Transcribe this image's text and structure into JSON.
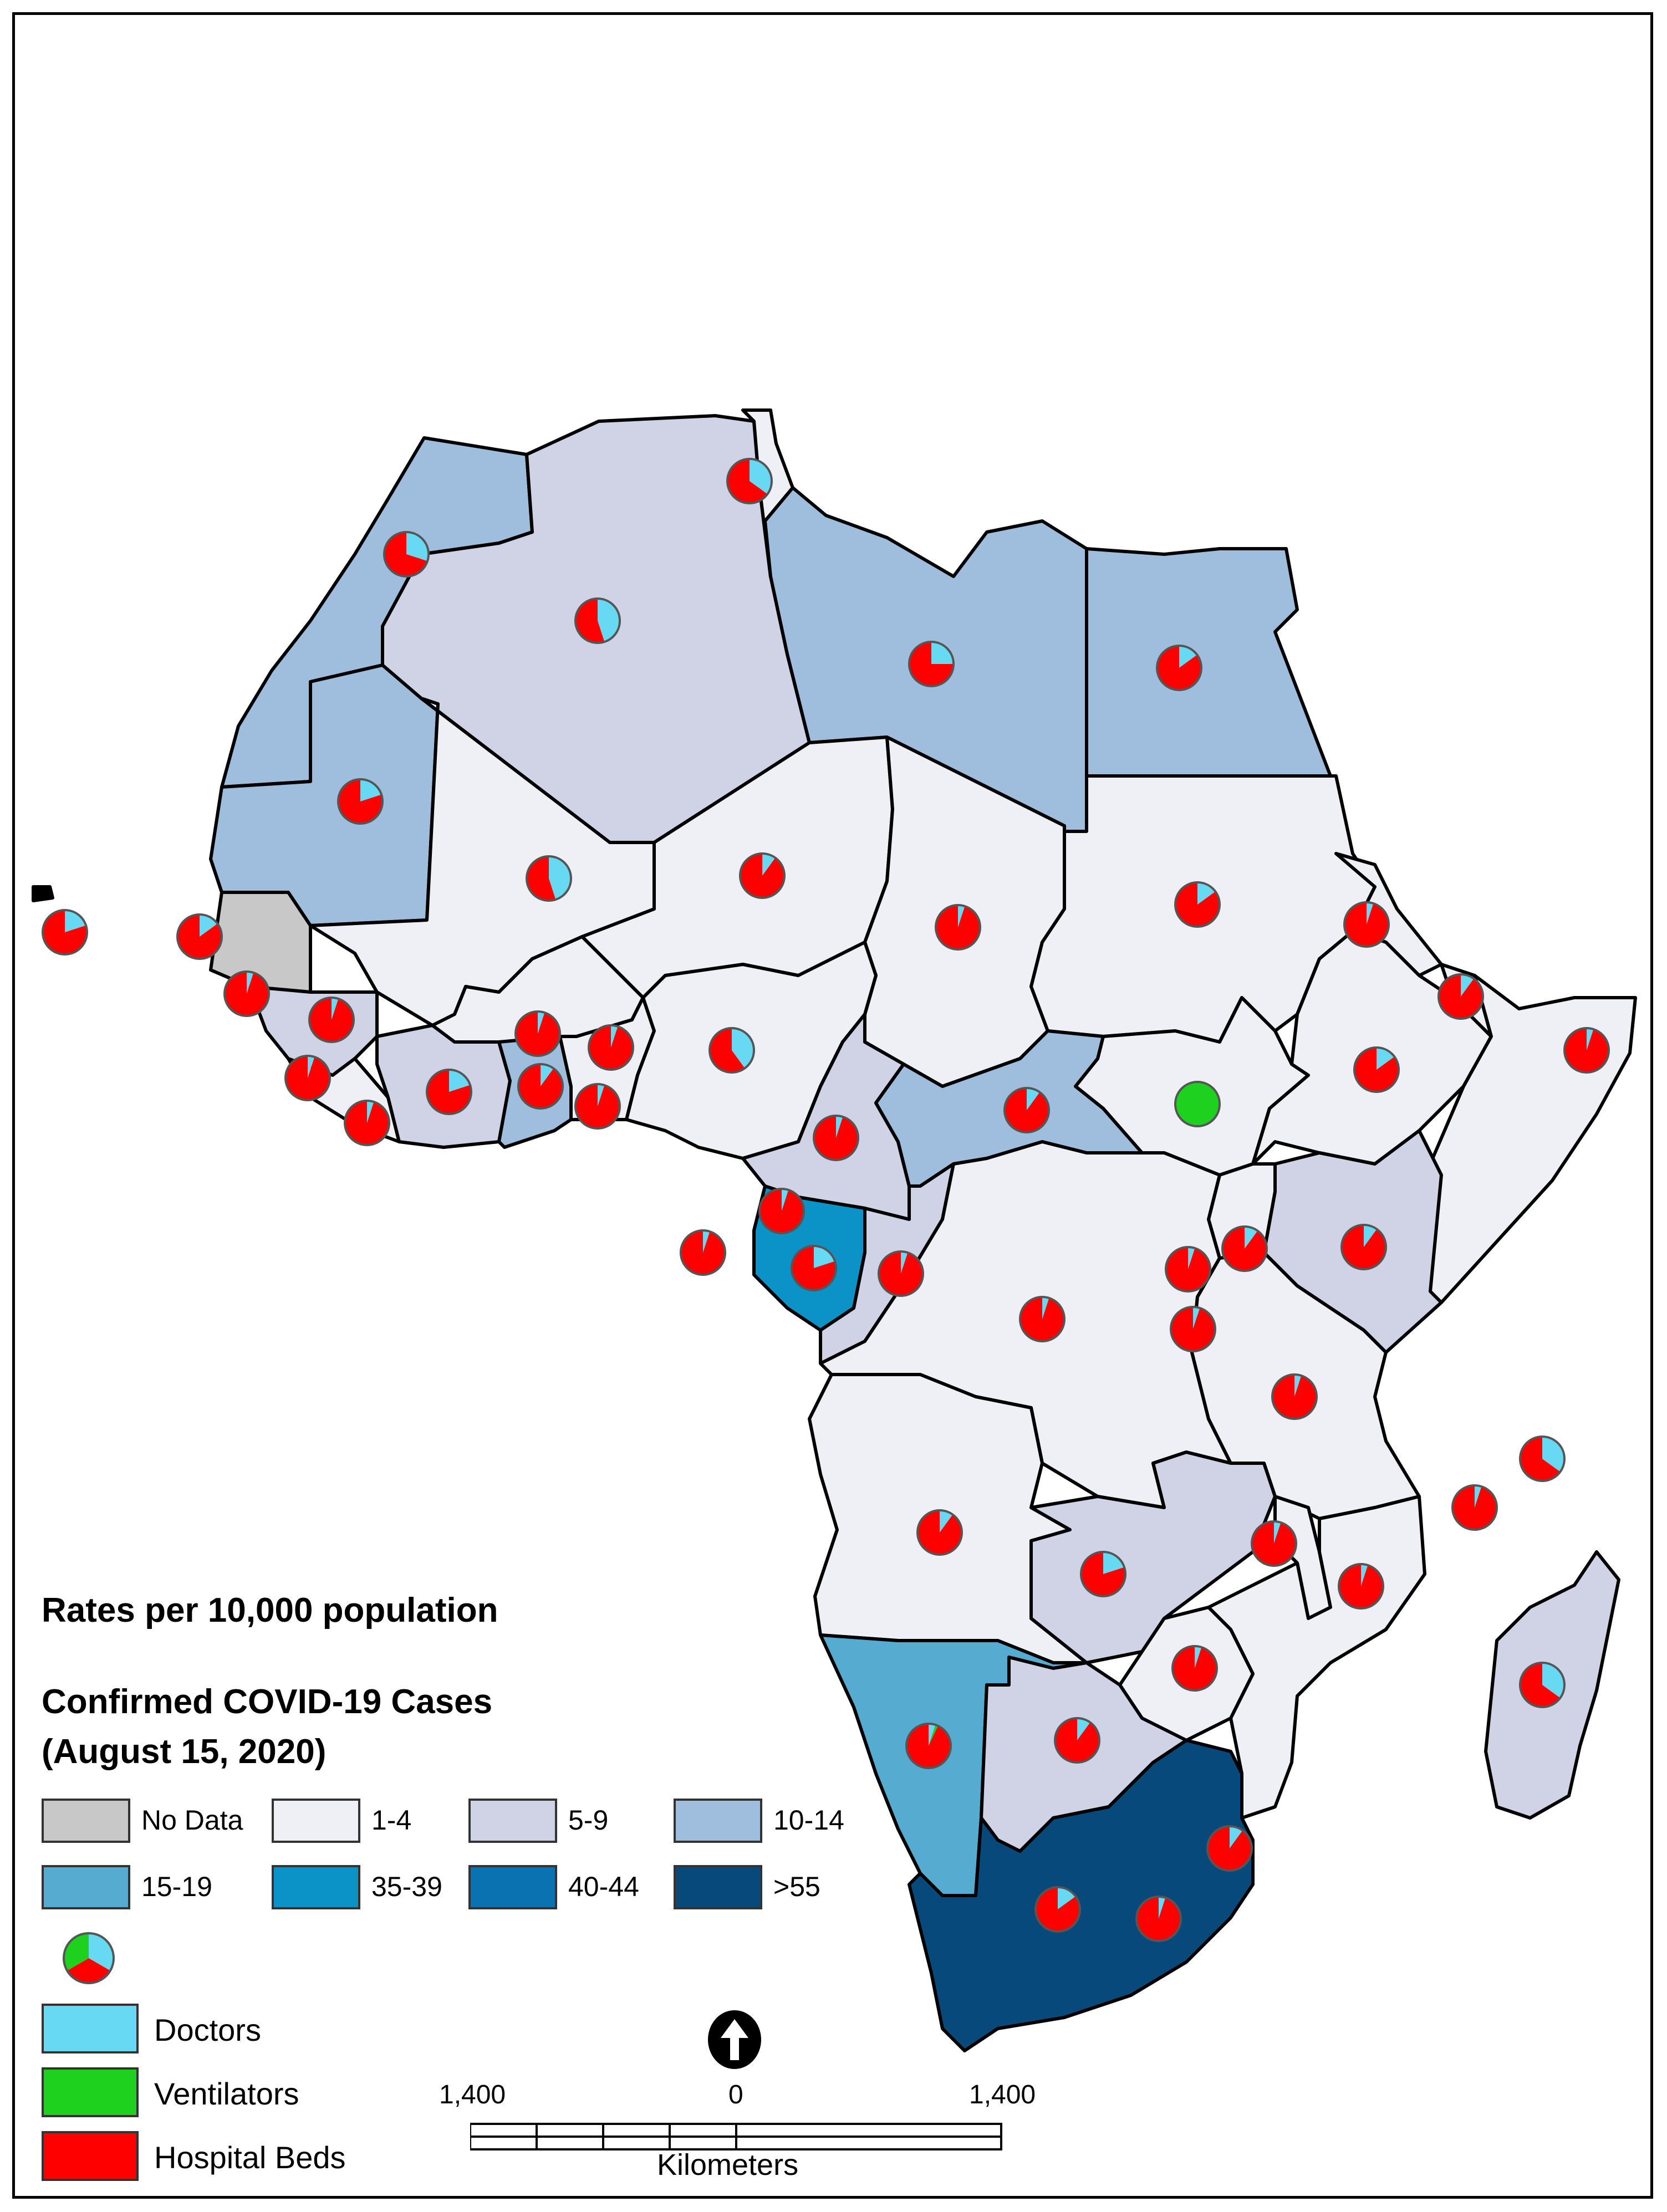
{
  "legend": {
    "rates_title": "Rates per 10,000 population",
    "cases_title": "Confirmed COVID-19 Cases",
    "cases_date": "(August 15, 2020)",
    "classes": [
      {
        "label": "No Data",
        "color": "#c8c8c8"
      },
      {
        "label": "1-4",
        "color": "#efeff6"
      },
      {
        "label": "5-9",
        "color": "#d0d2e6"
      },
      {
        "label": "10-14",
        "color": "#9fbddc"
      },
      {
        "label": "15-19",
        "color": "#55acd0"
      },
      {
        "label": "35-39",
        "color": "#0b93c8"
      },
      {
        "label": "40-44",
        "color": "#0a72b0"
      },
      {
        "label": ">55",
        "color": "#07497a"
      }
    ],
    "resources": [
      {
        "label": "Doctors",
        "color": "#67d9f2"
      },
      {
        "label": "Ventilators",
        "color": "#1ed11e"
      },
      {
        "label": "Hospital Beds",
        "color": "#ff0000"
      }
    ]
  },
  "scale_bar": {
    "left_label": "1,400",
    "center_label": "0",
    "right_label": "1,400",
    "unit": "Kilometers"
  },
  "north_arrow": "north-arrow-icon",
  "pie_charts": [
    {
      "country": "Morocco",
      "doctors": 0.3,
      "hospital_beds": 0.7
    },
    {
      "country": "Algeria",
      "doctors": 0.45,
      "hospital_beds": 0.55
    },
    {
      "country": "Tunisia",
      "doctors": 0.35,
      "hospital_beds": 0.65
    },
    {
      "country": "Libya",
      "doctors": 0.25,
      "hospital_beds": 0.75
    },
    {
      "country": "Egypt",
      "doctors": 0.15,
      "hospital_beds": 0.85
    },
    {
      "country": "Mauritania",
      "doctors": 0.2,
      "hospital_beds": 0.8
    },
    {
      "country": "Mali",
      "doctors": 0.45,
      "hospital_beds": 0.55
    },
    {
      "country": "Niger",
      "doctors": 0.1,
      "hospital_beds": 0.9
    },
    {
      "country": "Chad",
      "doctors": 0.05,
      "hospital_beds": 0.95
    },
    {
      "country": "Sudan",
      "doctors": 0.15,
      "hospital_beds": 0.85
    },
    {
      "country": "Cabo Verde",
      "doctors": 0.2,
      "hospital_beds": 0.8
    },
    {
      "country": "Senegal",
      "doctors": 0.15,
      "hospital_beds": 0.85
    },
    {
      "country": "Guinea-Bissau",
      "doctors": 0.05,
      "hospital_beds": 0.95
    },
    {
      "country": "Guinea",
      "doctors": 0.05,
      "hospital_beds": 0.95
    },
    {
      "country": "Sierra Leone",
      "doctors": 0.05,
      "hospital_beds": 0.95
    },
    {
      "country": "Liberia",
      "doctors": 0.05,
      "hospital_beds": 0.95
    },
    {
      "country": "Cote d'Ivoire",
      "doctors": 0.2,
      "hospital_beds": 0.8
    },
    {
      "country": "Burkina Faso",
      "doctors": 0.05,
      "hospital_beds": 0.95
    },
    {
      "country": "Ghana",
      "doctors": 0.1,
      "hospital_beds": 0.9
    },
    {
      "country": "Togo",
      "doctors": 0.05,
      "hospital_beds": 0.95
    },
    {
      "country": "Benin",
      "doctors": 0.05,
      "hospital_beds": 0.95
    },
    {
      "country": "Nigeria",
      "doctors": 0.4,
      "hospital_beds": 0.6
    },
    {
      "country": "Eritrea",
      "doctors": 0.05,
      "hospital_beds": 0.95
    },
    {
      "country": "Djibouti",
      "doctors": 0.1,
      "hospital_beds": 0.9
    },
    {
      "country": "Somalia",
      "doctors": 0.05,
      "hospital_beds": 0.95
    },
    {
      "country": "Ethiopia",
      "doctors": 0.15,
      "hospital_beds": 0.85
    },
    {
      "country": "South Sudan",
      "ventilators": 1.0
    },
    {
      "country": "Central African Republic",
      "doctors": 0.1,
      "hospital_beds": 0.9
    },
    {
      "country": "Cameroon",
      "doctors": 0.05,
      "hospital_beds": 0.95
    },
    {
      "country": "Equatorial Guinea",
      "doctors": 0.05,
      "hospital_beds": 0.95
    },
    {
      "country": "Sao Tome and Principe",
      "doctors": 0.05,
      "hospital_beds": 0.95
    },
    {
      "country": "Gabon",
      "doctors": 0.2,
      "hospital_beds": 0.8
    },
    {
      "country": "Congo",
      "doctors": 0.05,
      "hospital_beds": 0.95
    },
    {
      "country": "DR Congo",
      "doctors": 0.05,
      "hospital_beds": 0.95
    },
    {
      "country": "Uganda",
      "doctors": 0.1,
      "hospital_beds": 0.9
    },
    {
      "country": "Kenya",
      "doctors": 0.1,
      "hospital_beds": 0.9
    },
    {
      "country": "Rwanda",
      "doctors": 0.05,
      "hospital_beds": 0.95
    },
    {
      "country": "Burundi",
      "doctors": 0.05,
      "hospital_beds": 0.95
    },
    {
      "country": "Tanzania",
      "doctors": 0.05,
      "hospital_beds": 0.95
    },
    {
      "country": "Seychelles",
      "doctors": 0.35,
      "hospital_beds": 0.65
    },
    {
      "country": "Comoros",
      "doctors": 0.05,
      "hospital_beds": 0.95
    },
    {
      "country": "Angola",
      "doctors": 0.1,
      "hospital_beds": 0.9
    },
    {
      "country": "Zambia",
      "doctors": 0.2,
      "hospital_beds": 0.8
    },
    {
      "country": "Malawi",
      "doctors": 0.05,
      "hospital_beds": 0.95
    },
    {
      "country": "Mozambique",
      "doctors": 0.05,
      "hospital_beds": 0.95
    },
    {
      "country": "Zimbabwe",
      "doctors": 0.05,
      "hospital_beds": 0.95
    },
    {
      "country": "Madagascar",
      "doctors": 0.35,
      "hospital_beds": 0.65
    },
    {
      "country": "Namibia",
      "doctors": 0.05,
      "ventilators": 0.02,
      "hospital_beds": 0.93
    },
    {
      "country": "Botswana",
      "doctors": 0.1,
      "hospital_beds": 0.9
    },
    {
      "country": "Eswatini",
      "doctors": 0.1,
      "hospital_beds": 0.9
    },
    {
      "country": "South Africa",
      "doctors": 0.15,
      "hospital_beds": 0.85
    },
    {
      "country": "Lesotho",
      "doctors": 0.05,
      "hospital_beds": 0.95
    }
  ]
}
